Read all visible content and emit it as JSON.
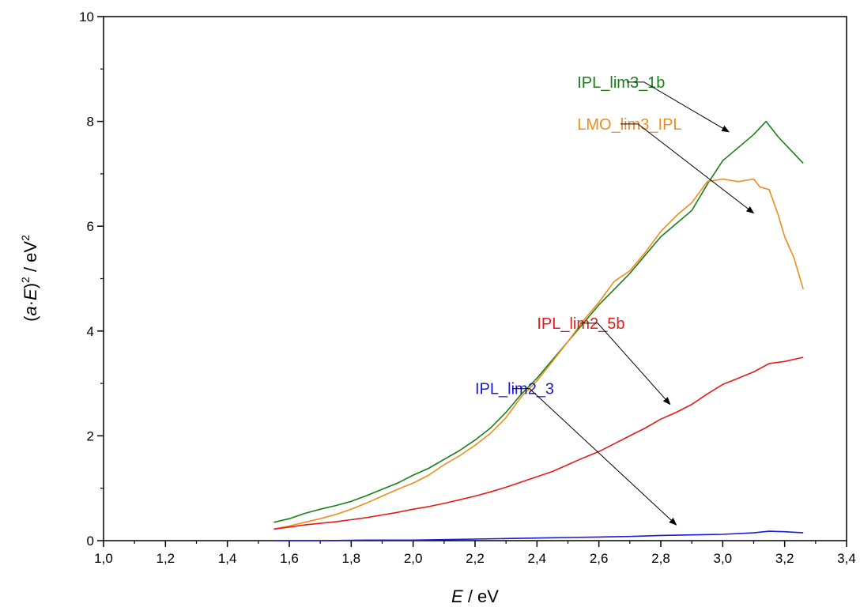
{
  "chart_data": {
    "type": "line",
    "xlabel": {
      "italic": "E",
      "rest": " / eV"
    },
    "ylabel": {
      "open": "(",
      "italic1": "a",
      "dot": "·",
      "italic2": "E",
      "close": ")",
      "sup1": "2",
      "mid": " / eV",
      "sup2": "2"
    },
    "xlim": [
      1.0,
      3.4
    ],
    "ylim": [
      0,
      10
    ],
    "x_ticks": [
      "1,0",
      "1,2",
      "1,4",
      "1,6",
      "1,8",
      "2,0",
      "2,2",
      "2,4",
      "2,6",
      "2,8",
      "3,0",
      "3,2",
      "3,4"
    ],
    "x_tick_values": [
      1.0,
      1.2,
      1.4,
      1.6,
      1.8,
      2.0,
      2.2,
      2.4,
      2.6,
      2.8,
      3.0,
      3.2,
      3.4
    ],
    "y_ticks": [
      "0",
      "2",
      "4",
      "6",
      "8",
      "10"
    ],
    "y_tick_values": [
      0,
      2,
      4,
      6,
      8,
      10
    ],
    "grid": false,
    "series": [
      {
        "name": "IPL_lim3_1b",
        "color": "#1a7f1a",
        "label_anchor": [
          2.53,
          8.75
        ],
        "arrow_from": [
          2.69,
          8.75
        ],
        "arrow_to": [
          3.02,
          7.8
        ],
        "points": [
          [
            1.55,
            0.35
          ],
          [
            1.6,
            0.42
          ],
          [
            1.65,
            0.52
          ],
          [
            1.7,
            0.6
          ],
          [
            1.75,
            0.67
          ],
          [
            1.8,
            0.75
          ],
          [
            1.85,
            0.86
          ],
          [
            1.9,
            0.98
          ],
          [
            1.95,
            1.1
          ],
          [
            2.0,
            1.25
          ],
          [
            2.05,
            1.38
          ],
          [
            2.1,
            1.55
          ],
          [
            2.15,
            1.72
          ],
          [
            2.2,
            1.92
          ],
          [
            2.25,
            2.15
          ],
          [
            2.3,
            2.45
          ],
          [
            2.35,
            2.8
          ],
          [
            2.4,
            3.1
          ],
          [
            2.45,
            3.45
          ],
          [
            2.5,
            3.8
          ],
          [
            2.55,
            4.15
          ],
          [
            2.6,
            4.5
          ],
          [
            2.65,
            4.8
          ],
          [
            2.7,
            5.1
          ],
          [
            2.75,
            5.45
          ],
          [
            2.8,
            5.8
          ],
          [
            2.85,
            6.05
          ],
          [
            2.9,
            6.3
          ],
          [
            2.95,
            6.8
          ],
          [
            3.0,
            7.25
          ],
          [
            3.05,
            7.5
          ],
          [
            3.1,
            7.75
          ],
          [
            3.14,
            8.0
          ],
          [
            3.18,
            7.7
          ],
          [
            3.22,
            7.45
          ],
          [
            3.26,
            7.2
          ]
        ]
      },
      {
        "name": "LMO_lim3_IPL",
        "color": "#f08c1c",
        "label_anchor": [
          2.53,
          7.95
        ],
        "arrow_from": [
          2.67,
          7.95
        ],
        "arrow_to": [
          3.1,
          6.25
        ],
        "points": [
          [
            1.55,
            0.22
          ],
          [
            1.6,
            0.28
          ],
          [
            1.65,
            0.35
          ],
          [
            1.7,
            0.42
          ],
          [
            1.75,
            0.5
          ],
          [
            1.8,
            0.6
          ],
          [
            1.85,
            0.72
          ],
          [
            1.9,
            0.85
          ],
          [
            1.95,
            0.98
          ],
          [
            2.0,
            1.1
          ],
          [
            2.05,
            1.25
          ],
          [
            2.1,
            1.45
          ],
          [
            2.15,
            1.62
          ],
          [
            2.2,
            1.82
          ],
          [
            2.25,
            2.05
          ],
          [
            2.3,
            2.35
          ],
          [
            2.35,
            2.75
          ],
          [
            2.4,
            3.05
          ],
          [
            2.45,
            3.42
          ],
          [
            2.5,
            3.8
          ],
          [
            2.55,
            4.2
          ],
          [
            2.6,
            4.55
          ],
          [
            2.65,
            4.95
          ],
          [
            2.7,
            5.15
          ],
          [
            2.75,
            5.5
          ],
          [
            2.8,
            5.9
          ],
          [
            2.85,
            6.2
          ],
          [
            2.9,
            6.45
          ],
          [
            2.95,
            6.85
          ],
          [
            3.0,
            6.9
          ],
          [
            3.05,
            6.85
          ],
          [
            3.1,
            6.9
          ],
          [
            3.12,
            6.75
          ],
          [
            3.15,
            6.7
          ],
          [
            3.18,
            6.2
          ],
          [
            3.2,
            5.8
          ],
          [
            3.23,
            5.4
          ],
          [
            3.26,
            4.8
          ]
        ]
      },
      {
        "name": "IPL_lim2_5b",
        "color": "#e31b1b",
        "label_anchor": [
          2.4,
          4.15
        ],
        "arrow_from": [
          2.54,
          4.15
        ],
        "arrow_to": [
          2.83,
          2.6
        ],
        "points": [
          [
            1.55,
            0.22
          ],
          [
            1.6,
            0.26
          ],
          [
            1.65,
            0.3
          ],
          [
            1.7,
            0.33
          ],
          [
            1.75,
            0.36
          ],
          [
            1.8,
            0.4
          ],
          [
            1.85,
            0.44
          ],
          [
            1.9,
            0.49
          ],
          [
            1.95,
            0.54
          ],
          [
            2.0,
            0.6
          ],
          [
            2.05,
            0.65
          ],
          [
            2.1,
            0.71
          ],
          [
            2.15,
            0.78
          ],
          [
            2.2,
            0.85
          ],
          [
            2.25,
            0.93
          ],
          [
            2.3,
            1.02
          ],
          [
            2.35,
            1.12
          ],
          [
            2.4,
            1.22
          ],
          [
            2.45,
            1.32
          ],
          [
            2.5,
            1.45
          ],
          [
            2.55,
            1.58
          ],
          [
            2.6,
            1.7
          ],
          [
            2.65,
            1.85
          ],
          [
            2.7,
            2.0
          ],
          [
            2.75,
            2.15
          ],
          [
            2.8,
            2.32
          ],
          [
            2.85,
            2.45
          ],
          [
            2.9,
            2.6
          ],
          [
            2.95,
            2.8
          ],
          [
            3.0,
            2.98
          ],
          [
            3.05,
            3.1
          ],
          [
            3.1,
            3.22
          ],
          [
            3.15,
            3.38
          ],
          [
            3.2,
            3.42
          ],
          [
            3.26,
            3.5
          ]
        ]
      },
      {
        "name": "IPL_lim2_3",
        "color": "#1a1ad8",
        "label_anchor": [
          2.2,
          2.9
        ],
        "arrow_from": [
          2.32,
          2.9
        ],
        "arrow_to": [
          2.85,
          0.3
        ],
        "points": [
          [
            1.55,
            0.0
          ],
          [
            1.7,
            0.0
          ],
          [
            1.85,
            0.01
          ],
          [
            2.0,
            0.01
          ],
          [
            2.1,
            0.02
          ],
          [
            2.2,
            0.03
          ],
          [
            2.3,
            0.04
          ],
          [
            2.4,
            0.05
          ],
          [
            2.5,
            0.06
          ],
          [
            2.6,
            0.07
          ],
          [
            2.7,
            0.08
          ],
          [
            2.8,
            0.1
          ],
          [
            2.9,
            0.11
          ],
          [
            3.0,
            0.12
          ],
          [
            3.1,
            0.15
          ],
          [
            3.15,
            0.18
          ],
          [
            3.2,
            0.17
          ],
          [
            3.26,
            0.15
          ]
        ]
      }
    ]
  }
}
